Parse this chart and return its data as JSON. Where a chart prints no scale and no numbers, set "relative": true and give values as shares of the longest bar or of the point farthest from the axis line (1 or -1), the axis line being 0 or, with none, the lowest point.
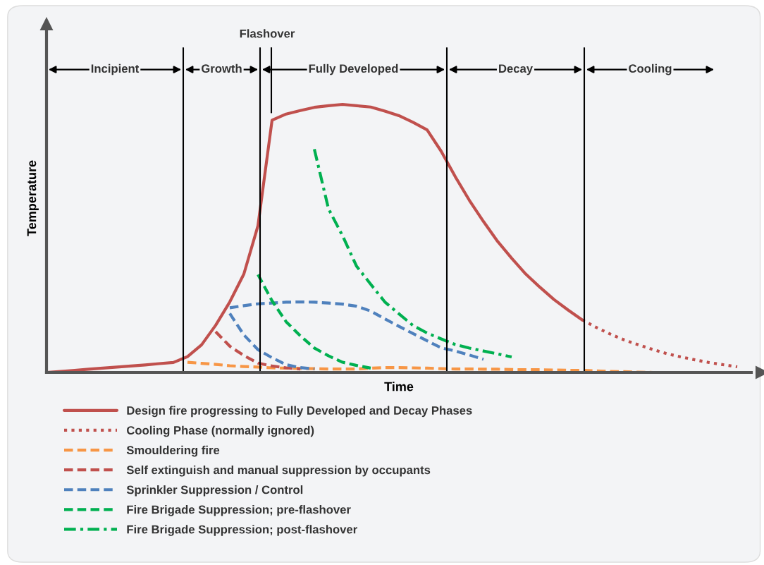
{
  "chart_data": {
    "type": "line",
    "relative": true,
    "xlabel": "Time",
    "ylabel": "Temperature",
    "legend": "bottom",
    "categories": [
      null,
      null,
      null,
      null,
      null,
      null,
      null,
      null,
      null,
      null,
      null,
      null,
      null,
      null,
      null,
      null,
      null,
      null,
      null,
      null,
      null,
      null,
      null,
      null,
      null,
      null,
      null,
      null,
      null,
      null,
      null,
      null,
      null,
      null,
      null,
      null,
      null,
      null,
      null,
      null,
      null,
      null,
      null,
      null,
      null,
      null,
      null,
      null,
      null,
      null
    ],
    "series": [
      {
        "name": "Design fire progressing to Fully Developed and Decay Phases",
        "color": "#c0504d",
        "line_style": "solid",
        "values": [
          0,
          0.004,
          0.008,
          0.012,
          0.016,
          0.02,
          0.024,
          0.028,
          0.033,
          0.037,
          0.059,
          0.103,
          0.176,
          0.263,
          0.367,
          0.547,
          0.941,
          0.964,
          0.977,
          0.989,
          0.995,
          1.0,
          0.995,
          0.99,
          0.975,
          0.958,
          0.933,
          0.905,
          0.825,
          0.73,
          0.642,
          0.563,
          0.489,
          0.426,
          0.367,
          0.318,
          0.272,
          0.233,
          0.196,
          null,
          null,
          null,
          null,
          null,
          null,
          null,
          null,
          null,
          null,
          null
        ]
      },
      {
        "name": "Cooling Phase (normally ignored)",
        "color": "#c0504d",
        "line_style": "dotted",
        "values": [
          null,
          null,
          null,
          null,
          null,
          null,
          null,
          null,
          null,
          null,
          null,
          null,
          null,
          null,
          null,
          null,
          null,
          null,
          null,
          null,
          null,
          null,
          null,
          null,
          null,
          null,
          null,
          null,
          null,
          null,
          null,
          null,
          null,
          null,
          null,
          null,
          null,
          null,
          0.196,
          0.168,
          0.143,
          0.121,
          0.103,
          0.086,
          0.07,
          0.058,
          0.047,
          0.037,
          0.029,
          0.021
        ]
      },
      {
        "name": "Smouldering fire",
        "color": "#f79646",
        "line_style": "dashed",
        "values": [
          null,
          null,
          null,
          null,
          null,
          null,
          null,
          null,
          null,
          null,
          0.038,
          0.034,
          0.03,
          0.025,
          0.022,
          0.02,
          0.017,
          0.016,
          0.015,
          0.014,
          0.013,
          0.013,
          0.013,
          0.016,
          0.018,
          0.018,
          0.017,
          0.016,
          0.014,
          0.013,
          0.013,
          0.012,
          0.012,
          0.011,
          0.01,
          0.01,
          0.009,
          0.008,
          0.008,
          0.006,
          0.004,
          0.003,
          0.001,
          0,
          null,
          null,
          null,
          null,
          null,
          null
        ]
      },
      {
        "name": "Self extinguish and manual suppression by occupants",
        "color": "#c0504d",
        "line_style": "dashed",
        "values": [
          null,
          null,
          null,
          null,
          null,
          null,
          null,
          null,
          null,
          null,
          null,
          null,
          0.152,
          0.098,
          0.063,
          0.035,
          0.024,
          0.017,
          0.013,
          null,
          null,
          null,
          null,
          null,
          null,
          null,
          null,
          null,
          null,
          null,
          null,
          null,
          null,
          null,
          null,
          null,
          null,
          null,
          null,
          null,
          null,
          null,
          null,
          null,
          null,
          null,
          null,
          null,
          null,
          null
        ]
      },
      {
        "name": "Sprinkler Suppression / Control",
        "color": "#4f81bd",
        "line_style": "dashed",
        "values": [
          null,
          null,
          null,
          null,
          null,
          null,
          null,
          null,
          null,
          null,
          null,
          null,
          null,
          0.241,
          0.249,
          0.256,
          0.259,
          0.262,
          0.263,
          0.262,
          0.259,
          0.255,
          0.247,
          0.229,
          0.2,
          0.172,
          0.145,
          0.118,
          0.092,
          0.08,
          0.065,
          0.049,
          null,
          null,
          null,
          null,
          null,
          null,
          null,
          null,
          null,
          null,
          null,
          null,
          null,
          null,
          null,
          null,
          null,
          null
        ]
      },
      {
        "color": "#4f81bd",
        "line_style": "dashed",
        "values": [
          null,
          null,
          null,
          null,
          null,
          null,
          null,
          null,
          null,
          null,
          null,
          null,
          null,
          0.22,
          0.14,
          0.085,
          0.055,
          0.029,
          0.018,
          0.013,
          null,
          null,
          null,
          null,
          null,
          null,
          null,
          null,
          null,
          null,
          null,
          null,
          null,
          null,
          null,
          null,
          null,
          null,
          null,
          null,
          null,
          null,
          null,
          null,
          null,
          null,
          null,
          null,
          null,
          null
        ]
      },
      {
        "name": "Fire Brigade Suppression; pre-flashover",
        "color": "#00b050",
        "line_style": "dashed",
        "values": [
          null,
          null,
          null,
          null,
          null,
          null,
          null,
          null,
          null,
          null,
          null,
          null,
          null,
          null,
          null,
          0.365,
          0.267,
          0.189,
          0.137,
          0.091,
          0.062,
          0.038,
          0.026,
          0.016,
          null,
          null,
          null,
          null,
          null,
          null,
          null,
          null,
          null,
          null,
          null,
          null,
          null,
          null,
          null,
          null,
          null,
          null,
          null,
          null,
          null,
          null,
          null,
          null,
          null,
          null
        ]
      },
      {
        "name": "Fire Brigade Suppression; post-flashover",
        "color": "#00b050",
        "line_style": "dashdot",
        "values": [
          null,
          null,
          null,
          null,
          null,
          null,
          null,
          null,
          null,
          null,
          null,
          null,
          null,
          null,
          null,
          null,
          null,
          null,
          null,
          0.833,
          0.611,
          0.51,
          0.396,
          0.329,
          0.263,
          0.219,
          0.175,
          0.147,
          0.125,
          0.104,
          0.091,
          0.08,
          0.069,
          0.058,
          null,
          null,
          null,
          null,
          null,
          null,
          null,
          null,
          null,
          null,
          null,
          null,
          null,
          null,
          null,
          null
        ]
      }
    ],
    "annotations": [
      "Flashover",
      "Incipient",
      "Growth",
      "Fully Developed",
      "Decay",
      "Cooling"
    ]
  }
}
